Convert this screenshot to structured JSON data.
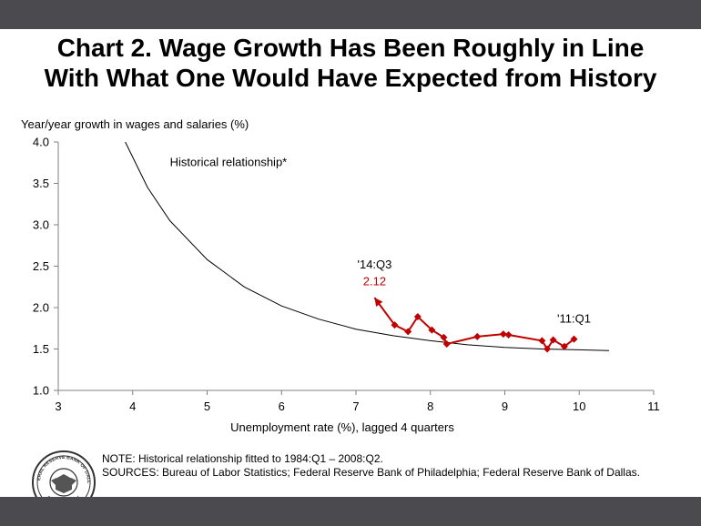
{
  "page": {
    "title_line1": "Chart 2. Wage Growth Has Been Roughly in Line",
    "title_line2": "With What One Would Have Expected from History",
    "note": "NOTE: Historical relationship fitted to 1984:Q1 – 2008:Q2.",
    "sources": "SOURCES: Bureau of Labor Statistics; Federal Reserve Bank of Philadelphia; Federal Reserve Bank of Dallas.",
    "seal_text_outer": "FEDERAL RESERVE BANK OF DALLAS",
    "seal_text_inner": "ELEVENTH DISTRICT"
  },
  "colors": {
    "bar": "#4a4a4f",
    "series": "#c00000",
    "curve": "#000000",
    "axis": "#808080"
  },
  "chart_data": {
    "type": "line",
    "title": "Chart 2. Wage Growth Has Been Roughly in Line With What One Would Have Expected from History",
    "ylabel": "Year/year growth in wages and salaries (%)",
    "xlabel": "Unemployment rate (%), lagged 4 quarters",
    "xlim": [
      3,
      11
    ],
    "ylim": [
      1.0,
      4.0
    ],
    "xticks": [
      "3",
      "4",
      "5",
      "6",
      "7",
      "8",
      "9",
      "10",
      "11"
    ],
    "yticks": [
      "1.0",
      "1.5",
      "2.0",
      "2.5",
      "3.0",
      "3.5",
      "4.0"
    ],
    "grid": false,
    "series": [
      {
        "name": "Historical relationship*",
        "kind": "curve",
        "x": [
          3.9,
          4.2,
          4.5,
          5.0,
          5.5,
          6.0,
          6.5,
          7.0,
          7.5,
          8.0,
          8.5,
          9.0,
          9.5,
          10.0,
          10.4
        ],
        "y": [
          4.0,
          3.45,
          3.05,
          2.58,
          2.25,
          2.02,
          1.86,
          1.74,
          1.66,
          1.6,
          1.55,
          1.52,
          1.5,
          1.49,
          1.48
        ]
      },
      {
        "name": "",
        "kind": "path",
        "x": [
          9.93,
          9.8,
          9.65,
          9.57,
          9.5,
          9.05,
          8.98,
          8.63,
          8.22,
          8.18,
          8.02,
          7.83,
          7.7,
          7.52,
          7.25
        ],
        "y": [
          1.62,
          1.53,
          1.61,
          1.5,
          1.6,
          1.67,
          1.68,
          1.65,
          1.56,
          1.64,
          1.73,
          1.89,
          1.71,
          1.79,
          2.12
        ]
      }
    ],
    "annotations": [
      {
        "text": "Historical relationship*",
        "x": 4.5,
        "y": 3.76
      },
      {
        "text": "'14:Q3",
        "x": 7.25,
        "y": 2.52
      },
      {
        "text": "2.12",
        "x": 7.25,
        "y": 2.32
      },
      {
        "text": "'11:Q1",
        "x": 9.93,
        "y": 1.87
      }
    ]
  }
}
